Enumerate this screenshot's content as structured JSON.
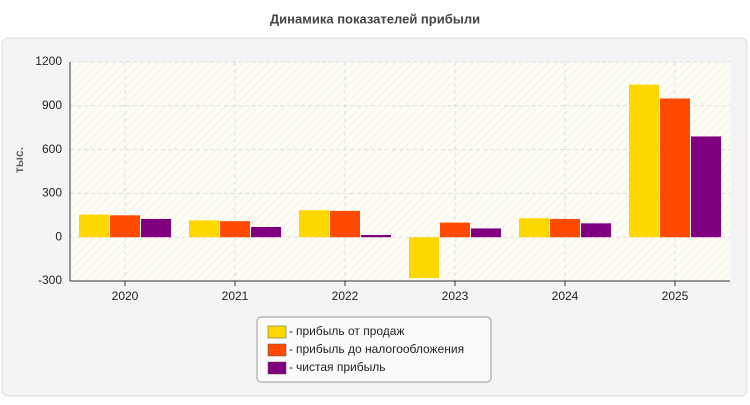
{
  "chart_data": {
    "type": "bar",
    "title": "Динамика показателей прибыли",
    "y_label": "тыс.",
    "categories": [
      "2020",
      "2021",
      "2022",
      "2023",
      "2024",
      "2025"
    ],
    "series": [
      {
        "name": "прибыль от продаж",
        "color": "#ffd700",
        "values": [
          155,
          115,
          185,
          -280,
          130,
          1045
        ]
      },
      {
        "name": "прибыль до налогообложения",
        "color": "#ff4a00",
        "values": [
          150,
          110,
          180,
          100,
          125,
          950
        ]
      },
      {
        "name": "чистая прибыль",
        "color": "#800080",
        "values": [
          125,
          70,
          15,
          60,
          95,
          690
        ]
      }
    ],
    "ylim": [
      -300,
      1200
    ],
    "yticks": [
      -300,
      0,
      300,
      600,
      900,
      1200
    ],
    "grid": true,
    "legend_position": "bottom"
  }
}
